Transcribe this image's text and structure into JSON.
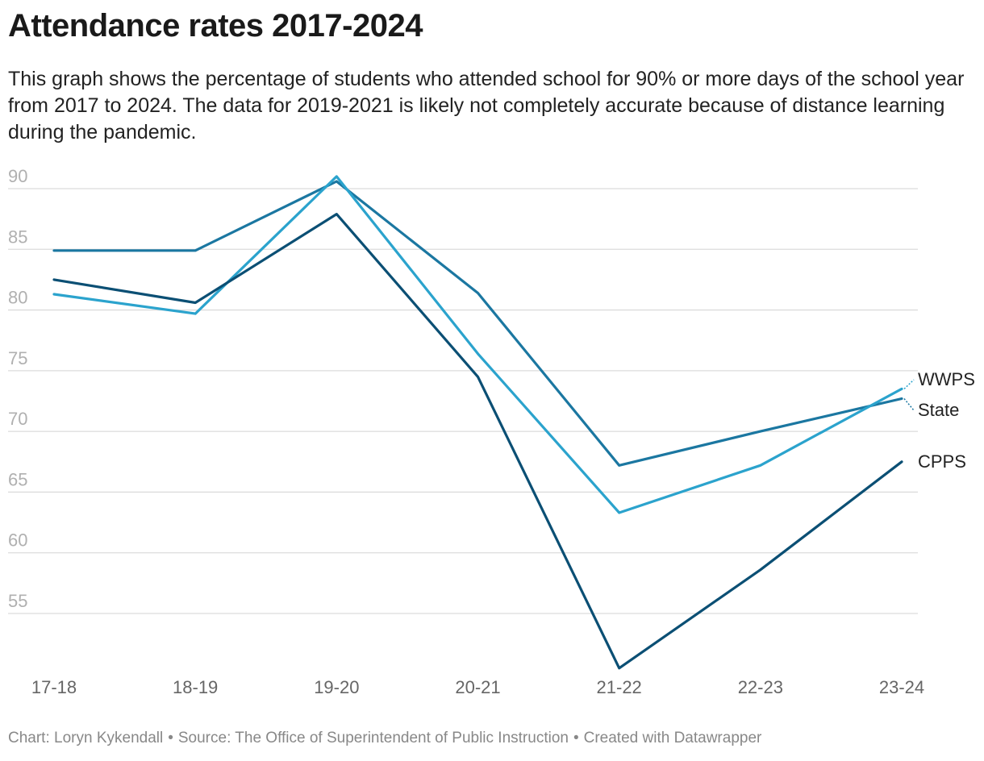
{
  "chart_data": {
    "type": "line",
    "title": "Attendance rates 2017-2024",
    "subtitle": "This graph shows the percentage of students who attended school for 90% or more days of the school year from 2017 to 2024. The data for 2019-2021 is likely not completely accurate because of distance learning during the pandemic.",
    "categories": [
      "17-18",
      "18-19",
      "19-20",
      "20-21",
      "21-22",
      "22-23",
      "23-24"
    ],
    "yticks": [
      55,
      60,
      65,
      70,
      75,
      80,
      85,
      90
    ],
    "ylim": [
      50,
      91
    ],
    "series": [
      {
        "name": "State",
        "color": "#1b77a1",
        "values": [
          84.9,
          84.9,
          90.6,
          81.4,
          67.2,
          70.0,
          72.7
        ]
      },
      {
        "name": "WWPS",
        "color": "#2ba3cd",
        "values": [
          81.3,
          79.7,
          91.0,
          76.4,
          63.3,
          67.2,
          73.5
        ]
      },
      {
        "name": "CPPS",
        "color": "#0b4f74",
        "values": [
          82.5,
          80.6,
          87.9,
          74.5,
          50.5,
          58.6,
          67.5
        ]
      }
    ]
  },
  "footer": {
    "chart_credit": "Chart: Loryn Kykendall",
    "source": "Source: The Office of Superintendent of Public Instruction",
    "created_with": "Created with Datawrapper",
    "separator": "•"
  }
}
